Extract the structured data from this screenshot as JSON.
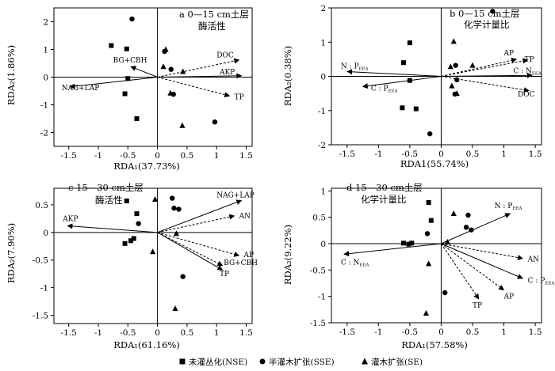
{
  "legend": [
    {
      "label": "未灌丛化(NSE)",
      "marker": "square"
    },
    {
      "label": "半灌木扩张(SSE)",
      "marker": "circle"
    },
    {
      "label": "灌木扩张(SE)",
      "marker": "triangle"
    }
  ],
  "chart_data": [
    {
      "type": "scatter",
      "panel_letter": "a",
      "title_line1": "0—15 cm土层",
      "title_line2": "酶活性",
      "xlabel": "RDA₁(37.73%)",
      "ylabel": "RDA₂(1.86%)",
      "xlim": [
        -1.75,
        1.6
      ],
      "ylim": [
        -2.5,
        2.5
      ],
      "xticks": [
        "-1.5",
        "-1",
        "-0.5",
        "0",
        "0.5",
        "1",
        "1.5"
      ],
      "xtick_values": [
        -1.5,
        -1,
        -0.5,
        0,
        0.5,
        1,
        1.5
      ],
      "yticks": [
        "-2",
        "-1",
        "0",
        "1",
        "2"
      ],
      "ytick_values": [
        -2,
        -1,
        0,
        1,
        2
      ],
      "grid": false,
      "arrows": [
        {
          "label": "DOC",
          "x": 1.38,
          "y": 0.62,
          "dashed": true,
          "lx": 1.0,
          "ly": 0.8
        },
        {
          "label": "AKP",
          "x": 1.42,
          "y": 0.05,
          "dashed": false,
          "lx": 1.05,
          "ly": 0.18
        },
        {
          "label": "TP",
          "x": 1.22,
          "y": -0.68,
          "dashed": true,
          "lx": 1.3,
          "ly": -0.72
        },
        {
          "label": "BG+CBH",
          "x": -0.45,
          "y": 0.38,
          "dashed": false,
          "lx": -0.75,
          "ly": 0.62
        },
        {
          "label": "NAG+LAP",
          "x": -1.48,
          "y": -0.35,
          "dashed": false,
          "lx": -1.62,
          "ly": -0.38
        }
      ],
      "points": [
        {
          "group": "NSE",
          "x": -0.78,
          "y": 1.14
        },
        {
          "group": "NSE",
          "x": -0.52,
          "y": 1.02
        },
        {
          "group": "NSE",
          "x": -0.5,
          "y": -0.05
        },
        {
          "group": "NSE",
          "x": -0.55,
          "y": -0.6
        },
        {
          "group": "NSE",
          "x": -0.35,
          "y": -1.5
        },
        {
          "group": "SSE",
          "x": -0.43,
          "y": 2.1
        },
        {
          "group": "SSE",
          "x": 0.12,
          "y": 0.93
        },
        {
          "group": "SSE",
          "x": 0.23,
          "y": 0.28
        },
        {
          "group": "SSE",
          "x": 0.27,
          "y": -0.62
        },
        {
          "group": "SSE",
          "x": 0.97,
          "y": -1.62
        },
        {
          "group": "SE",
          "x": 0.14,
          "y": 1.0
        },
        {
          "group": "SE",
          "x": 0.1,
          "y": 0.38
        },
        {
          "group": "SE",
          "x": 0.43,
          "y": 0.2
        },
        {
          "group": "SE",
          "x": 0.22,
          "y": -0.58
        },
        {
          "group": "SE",
          "x": 0.42,
          "y": -1.75
        }
      ]
    },
    {
      "type": "scatter",
      "panel_letter": "b",
      "title_line1": "0—15 cm土层",
      "title_line2": "化学计量比",
      "xlabel": "RDA1(55.74%)",
      "ylabel": "RDA₂(0.38%)",
      "xlim": [
        -1.75,
        1.6
      ],
      "ylim": [
        -2.0,
        2.0
      ],
      "xticks": [
        "-1.5",
        "-1",
        "-0.5",
        "0",
        "0.5",
        "1",
        "1.5"
      ],
      "xtick_values": [
        -1.5,
        -1,
        -0.5,
        0,
        0.5,
        1,
        1.5
      ],
      "yticks": [
        "-2",
        "-1",
        "0",
        "1",
        "2"
      ],
      "ytick_values": [
        -2,
        -1,
        0,
        1,
        2
      ],
      "grid": false,
      "arrows": [
        {
          "label": "AP",
          "x": 1.2,
          "y": 0.5,
          "dashed": true,
          "lx": 1.0,
          "ly": 0.68
        },
        {
          "label": "TP",
          "x": 1.38,
          "y": 0.48,
          "dashed": true,
          "lx": 1.33,
          "ly": 0.5
        },
        {
          "label": "C : N",
          "sub": "EEA",
          "x": 1.45,
          "y": 0.03,
          "dashed": false,
          "lx": 1.15,
          "ly": 0.16
        },
        {
          "label": "DOC",
          "x": 1.4,
          "y": -0.42,
          "dashed": true,
          "lx": 1.22,
          "ly": -0.52
        },
        {
          "label": "N : P",
          "sub": "EEA",
          "x": -1.5,
          "y": 0.14,
          "dashed": false,
          "lx": -1.6,
          "ly": 0.3
        },
        {
          "label": "C : P",
          "sub": "EEA",
          "x": -1.25,
          "y": -0.3,
          "dashed": false,
          "lx": -1.12,
          "ly": -0.35
        }
      ],
      "points": [
        {
          "group": "NSE",
          "x": -0.5,
          "y": 0.98
        },
        {
          "group": "NSE",
          "x": -0.6,
          "y": 0.4
        },
        {
          "group": "NSE",
          "x": -0.5,
          "y": -0.12
        },
        {
          "group": "NSE",
          "x": -0.62,
          "y": -0.92
        },
        {
          "group": "NSE",
          "x": -0.4,
          "y": -0.95
        },
        {
          "group": "SSE",
          "x": 0.82,
          "y": 1.9
        },
        {
          "group": "SSE",
          "x": 0.23,
          "y": 0.32
        },
        {
          "group": "SSE",
          "x": 0.25,
          "y": -0.1
        },
        {
          "group": "SSE",
          "x": 0.22,
          "y": -0.52
        },
        {
          "group": "SSE",
          "x": -0.18,
          "y": -1.68
        },
        {
          "group": "SE",
          "x": 0.2,
          "y": 1.02
        },
        {
          "group": "SE",
          "x": 0.15,
          "y": 0.28
        },
        {
          "group": "SE",
          "x": 0.5,
          "y": 0.32
        },
        {
          "group": "SE",
          "x": 0.17,
          "y": -0.28
        },
        {
          "group": "SE",
          "x": 0.25,
          "y": -0.5
        }
      ]
    },
    {
      "type": "scatter",
      "panel_letter": "c",
      "title_line1": "15—30 cm土层",
      "title_line2": "酶活性",
      "xlabel": "RDA₁(61.16%)",
      "ylabel": "RDA₂(7.90%)",
      "xlim": [
        -1.75,
        1.6
      ],
      "ylim": [
        -1.65,
        0.8
      ],
      "xticks": [
        "-1.5",
        "-1",
        "-0.5",
        "0",
        "0.5",
        "1",
        "1.5"
      ],
      "xtick_values": [
        -1.5,
        -1,
        -0.5,
        0,
        0.5,
        1,
        1.5
      ],
      "yticks": [
        "-1.5",
        "-1",
        "-0.5",
        "0",
        "0.5"
      ],
      "ytick_values": [
        -1.5,
        -1,
        -0.5,
        0,
        0.5
      ],
      "grid": false,
      "arrows": [
        {
          "label": "NAG+LAP",
          "x": 1.42,
          "y": 0.58,
          "dashed": false,
          "lx": 1.0,
          "ly": 0.68
        },
        {
          "label": "AN",
          "x": 1.3,
          "y": 0.3,
          "dashed": true,
          "lx": 1.38,
          "ly": 0.3
        },
        {
          "label": "AP",
          "x": 1.38,
          "y": -0.42,
          "dashed": true,
          "lx": 1.46,
          "ly": -0.4
        },
        {
          "label": "BG+CBH",
          "x": 1.1,
          "y": -0.6,
          "dashed": true,
          "lx": 1.12,
          "ly": -0.55
        },
        {
          "label": "TP",
          "x": 1.1,
          "y": -0.68,
          "dashed": false,
          "lx": 1.05,
          "ly": -0.75
        },
        {
          "label": "AKP",
          "x": -1.52,
          "y": 0.12,
          "dashed": false,
          "lx": -1.6,
          "ly": 0.25
        }
      ],
      "points": [
        {
          "group": "NSE",
          "x": -0.52,
          "y": 0.57
        },
        {
          "group": "NSE",
          "x": -0.35,
          "y": 0.34
        },
        {
          "group": "NSE",
          "x": -0.55,
          "y": -0.2
        },
        {
          "group": "NSE",
          "x": -0.45,
          "y": -0.15
        },
        {
          "group": "NSE",
          "x": -0.4,
          "y": -0.11
        },
        {
          "group": "SSE",
          "x": 0.25,
          "y": 0.62
        },
        {
          "group": "SSE",
          "x": 0.28,
          "y": 0.44
        },
        {
          "group": "SSE",
          "x": 0.36,
          "y": 0.42
        },
        {
          "group": "SSE",
          "x": -0.32,
          "y": 0.16
        },
        {
          "group": "SSE",
          "x": 0.43,
          "y": -0.8
        },
        {
          "group": "SE",
          "x": -0.04,
          "y": 0.6
        },
        {
          "group": "SE",
          "x": 0.32,
          "y": -0.02
        },
        {
          "group": "SE",
          "x": -0.08,
          "y": -0.35
        },
        {
          "group": "SE",
          "x": 0.3,
          "y": -1.38
        }
      ]
    },
    {
      "type": "scatter",
      "panel_letter": "d",
      "title_line1": "15—30 cm土层",
      "title_line2": "化学计量比",
      "xlabel": "RDA₁(57.58%)",
      "ylabel": "RDA₂(9.22%)",
      "xlim": [
        -1.75,
        1.6
      ],
      "ylim": [
        -1.5,
        1.05
      ],
      "xticks": [
        "-1.5",
        "-1",
        "-0.5",
        "0",
        "0.5",
        "1",
        "1.5"
      ],
      "xtick_values": [
        -1.5,
        -1,
        -0.5,
        0,
        0.5,
        1,
        1.5
      ],
      "yticks": [
        "-1.5",
        "-1",
        "-0.5",
        "0",
        "0.5",
        "1"
      ],
      "ytick_values": [
        -1.5,
        -1,
        -0.5,
        0,
        0.5,
        1
      ],
      "grid": false,
      "arrows": [
        {
          "label": "N : P",
          "sub": "EEA",
          "x": 1.1,
          "y": 0.57,
          "dashed": false,
          "lx": 0.85,
          "ly": 0.72
        },
        {
          "label": "AN",
          "x": 1.3,
          "y": -0.28,
          "dashed": true,
          "lx": 1.38,
          "ly": -0.29
        },
        {
          "label": "C : P",
          "sub": "EEA",
          "x": 1.3,
          "y": -0.66,
          "dashed": false,
          "lx": 1.38,
          "ly": -0.7
        },
        {
          "label": "AP",
          "x": 1.0,
          "y": -0.88,
          "dashed": true,
          "lx": 1.0,
          "ly": -1.0
        },
        {
          "label": "TP",
          "x": 0.6,
          "y": -1.05,
          "dashed": true,
          "lx": 0.5,
          "ly": -1.17
        },
        {
          "label": "C : N",
          "sub": "EEA",
          "x": -1.55,
          "y": -0.2,
          "dashed": false,
          "lx": -1.6,
          "ly": -0.35
        }
      ],
      "points": [
        {
          "group": "NSE",
          "x": -0.2,
          "y": 0.78
        },
        {
          "group": "NSE",
          "x": -0.16,
          "y": 0.44
        },
        {
          "group": "NSE",
          "x": -0.6,
          "y": 0.01
        },
        {
          "group": "NSE",
          "x": -0.52,
          "y": -0.01
        },
        {
          "group": "NSE",
          "x": -0.47,
          "y": 0.01
        },
        {
          "group": "SSE",
          "x": 0.43,
          "y": 0.54
        },
        {
          "group": "SSE",
          "x": 0.4,
          "y": 0.31
        },
        {
          "group": "SSE",
          "x": 0.48,
          "y": 0.26
        },
        {
          "group": "SSE",
          "x": -0.22,
          "y": 0.19
        },
        {
          "group": "SSE",
          "x": 0.06,
          "y": -0.93
        },
        {
          "group": "SE",
          "x": 0.2,
          "y": 0.57
        },
        {
          "group": "SE",
          "x": 0.1,
          "y": 0.03
        },
        {
          "group": "SE",
          "x": -0.2,
          "y": -0.38
        },
        {
          "group": "SE",
          "x": -0.24,
          "y": -1.32
        }
      ]
    }
  ]
}
